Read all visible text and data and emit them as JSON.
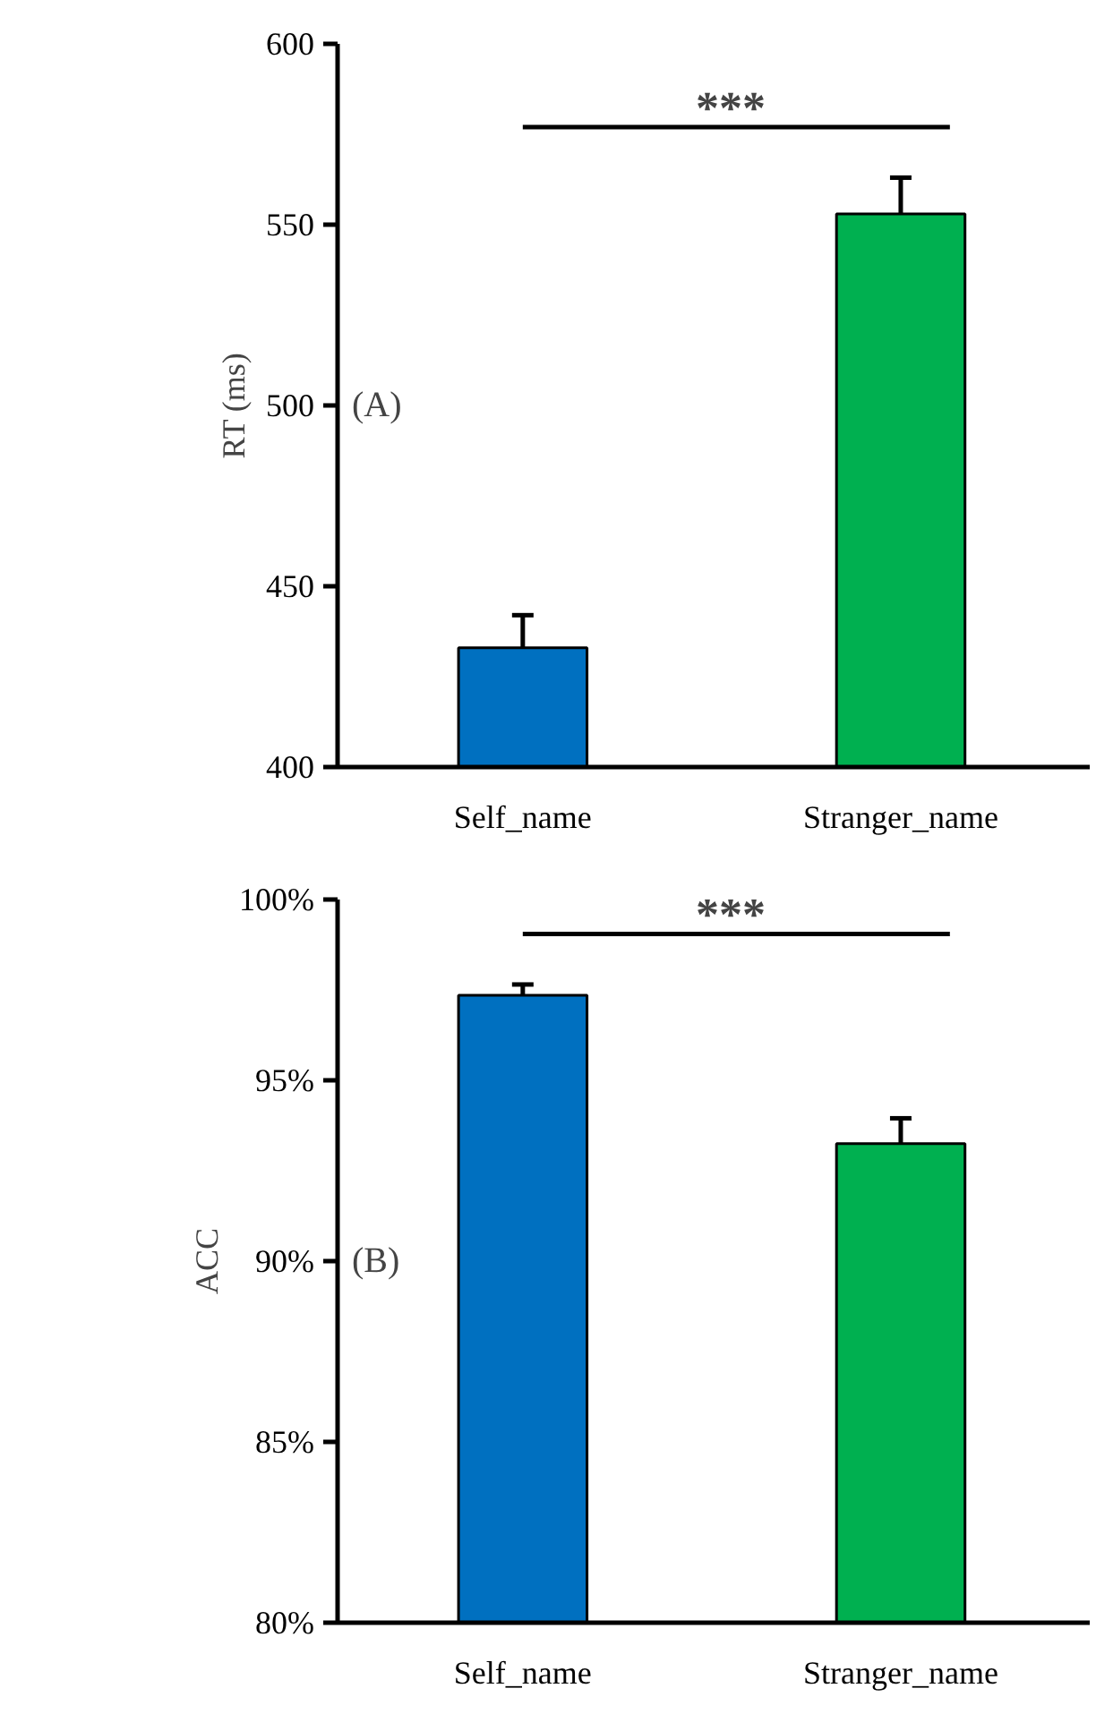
{
  "chart_data": [
    {
      "type": "bar",
      "ylabel": "RT (ms)",
      "categories": [
        "Self_name",
        "Stranger_name"
      ],
      "colors": [
        "#0070c0",
        "#00b050"
      ],
      "values": [
        433,
        553
      ],
      "errors": [
        9,
        10
      ],
      "ylim": [
        400,
        600
      ],
      "yticks": [
        400,
        450,
        500,
        550,
        600
      ],
      "grid": false,
      "annotations": [
        "(A)",
        "***"
      ]
    },
    {
      "type": "bar",
      "ylabel": "ACC",
      "categories": [
        "Self_name",
        "Stranger_name"
      ],
      "colors": [
        "#0070c0",
        "#00b050"
      ],
      "values": [
        97.35,
        93.25
      ],
      "errors": [
        0.3,
        0.7
      ],
      "ylim": [
        80,
        100
      ],
      "yticks": [
        {
          "value": 80,
          "label": "80%"
        },
        {
          "value": 85,
          "label": "85%"
        },
        {
          "value": 90,
          "label": "90%"
        },
        {
          "value": 95,
          "label": "95%"
        },
        {
          "value": 100,
          "label": "100%"
        }
      ],
      "grid": false,
      "annotations": [
        "(B)",
        "***"
      ]
    }
  ]
}
